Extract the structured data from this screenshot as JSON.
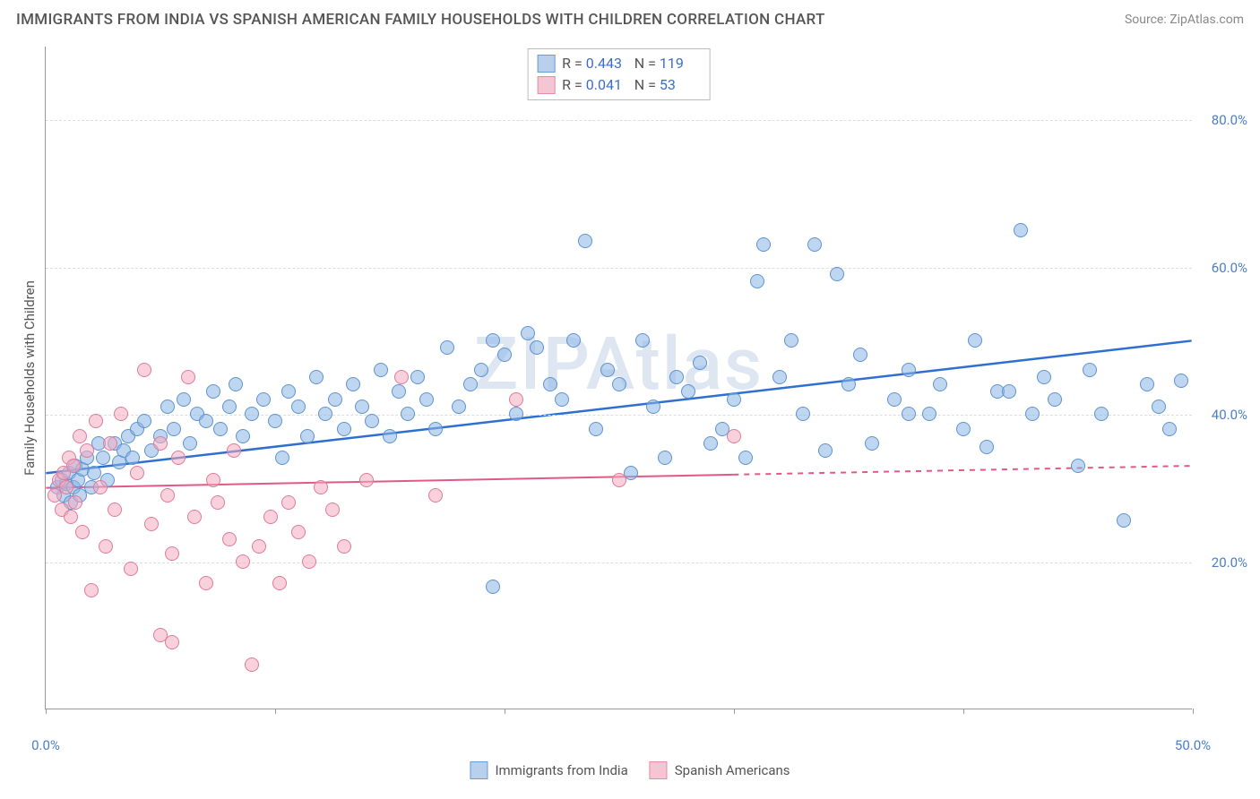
{
  "title": "IMMIGRANTS FROM INDIA VS SPANISH AMERICAN FAMILY HOUSEHOLDS WITH CHILDREN CORRELATION CHART",
  "source": "Source: ZipAtlas.com",
  "watermark": "ZIPAtlas",
  "y_axis_label": "Family Households with Children",
  "xlim": [
    0,
    50
  ],
  "ylim": [
    0,
    90
  ],
  "x_ticks": [
    0,
    10,
    20,
    30,
    40,
    50
  ],
  "x_tick_labels": [
    "0.0%",
    "",
    "",
    "",
    "",
    "50.0%"
  ],
  "y_gridlines": [
    20,
    40,
    60,
    80
  ],
  "y_tick_labels": [
    "20.0%",
    "40.0%",
    "60.0%",
    "80.0%"
  ],
  "series": [
    {
      "name": "Immigrants from India",
      "fill": "rgba(138,180,230,0.55)",
      "stroke": "#5e93d0",
      "swatch_fill": "#b8d0ec",
      "swatch_border": "#6a9bd6",
      "r_value": "0.443",
      "n_value": "119",
      "trend": {
        "x1": 0,
        "y1": 32,
        "x2": 50,
        "y2": 50,
        "color": "#2f6fd0",
        "width": 2.5,
        "dash": "none",
        "solid_until": 50
      },
      "points": [
        [
          0.5,
          30
        ],
        [
          0.7,
          31
        ],
        [
          0.8,
          29
        ],
        [
          0.9,
          30.5
        ],
        [
          1.0,
          32
        ],
        [
          1.1,
          28
        ],
        [
          1.2,
          30
        ],
        [
          1.3,
          33
        ],
        [
          1.4,
          31
        ],
        [
          1.5,
          29
        ],
        [
          1.6,
          32.5
        ],
        [
          1.8,
          34
        ],
        [
          2.0,
          30
        ],
        [
          2.1,
          32
        ],
        [
          2.3,
          36
        ],
        [
          2.5,
          34
        ],
        [
          2.7,
          31
        ],
        [
          3.0,
          36
        ],
        [
          3.2,
          33.5
        ],
        [
          3.4,
          35
        ],
        [
          3.6,
          37
        ],
        [
          3.8,
          34
        ],
        [
          4.0,
          38
        ],
        [
          4.3,
          39
        ],
        [
          4.6,
          35
        ],
        [
          5.0,
          37
        ],
        [
          5.3,
          41
        ],
        [
          5.6,
          38
        ],
        [
          6.0,
          42
        ],
        [
          6.3,
          36
        ],
        [
          6.6,
          40
        ],
        [
          7.0,
          39
        ],
        [
          7.3,
          43
        ],
        [
          7.6,
          38
        ],
        [
          8.0,
          41
        ],
        [
          8.3,
          44
        ],
        [
          8.6,
          37
        ],
        [
          9.0,
          40
        ],
        [
          9.5,
          42
        ],
        [
          10.0,
          39
        ],
        [
          10.3,
          34
        ],
        [
          10.6,
          43
        ],
        [
          11.0,
          41
        ],
        [
          11.4,
          37
        ],
        [
          11.8,
          45
        ],
        [
          12.2,
          40
        ],
        [
          12.6,
          42
        ],
        [
          13.0,
          38
        ],
        [
          13.4,
          44
        ],
        [
          13.8,
          41
        ],
        [
          14.2,
          39
        ],
        [
          14.6,
          46
        ],
        [
          15.0,
          37
        ],
        [
          15.4,
          43
        ],
        [
          15.8,
          40
        ],
        [
          16.2,
          45
        ],
        [
          16.6,
          42
        ],
        [
          17.0,
          38
        ],
        [
          17.5,
          49
        ],
        [
          18.0,
          41
        ],
        [
          18.5,
          44
        ],
        [
          19.0,
          46
        ],
        [
          19.5,
          16.5
        ],
        [
          19.5,
          50
        ],
        [
          20.0,
          48
        ],
        [
          20.5,
          40
        ],
        [
          21.0,
          51
        ],
        [
          21.4,
          49
        ],
        [
          22.0,
          44
        ],
        [
          22.5,
          42
        ],
        [
          23.0,
          50
        ],
        [
          23.5,
          63.5
        ],
        [
          24.0,
          38
        ],
        [
          24.5,
          46
        ],
        [
          25.0,
          44
        ],
        [
          25.5,
          32
        ],
        [
          26.0,
          50
        ],
        [
          26.5,
          41
        ],
        [
          27.0,
          34
        ],
        [
          27.5,
          45
        ],
        [
          28.0,
          43
        ],
        [
          28.5,
          47
        ],
        [
          29.0,
          36
        ],
        [
          29.5,
          38
        ],
        [
          30.0,
          42
        ],
        [
          30.5,
          34
        ],
        [
          31.0,
          58
        ],
        [
          31.3,
          63
        ],
        [
          32.0,
          45
        ],
        [
          32.5,
          50
        ],
        [
          33.0,
          40
        ],
        [
          33.5,
          63
        ],
        [
          34.0,
          35
        ],
        [
          34.5,
          59
        ],
        [
          35.0,
          44
        ],
        [
          35.5,
          48
        ],
        [
          36.0,
          36
        ],
        [
          37.0,
          42
        ],
        [
          37.6,
          46
        ],
        [
          37.6,
          40
        ],
        [
          38.5,
          40
        ],
        [
          39.0,
          44
        ],
        [
          40.0,
          38
        ],
        [
          40.5,
          50
        ],
        [
          41.0,
          35.5
        ],
        [
          41.5,
          43
        ],
        [
          42.0,
          43
        ],
        [
          42.5,
          65
        ],
        [
          43.0,
          40
        ],
        [
          43.5,
          45
        ],
        [
          44.0,
          42
        ],
        [
          45.0,
          33
        ],
        [
          45.5,
          46
        ],
        [
          46.0,
          40
        ],
        [
          47.0,
          25.5
        ],
        [
          48.0,
          44
        ],
        [
          48.5,
          41
        ],
        [
          49.0,
          38
        ],
        [
          49.5,
          44.5
        ]
      ]
    },
    {
      "name": "Spanish Americans",
      "fill": "rgba(243,172,193,0.55)",
      "stroke": "#e07a9a",
      "swatch_fill": "#f4c6d4",
      "swatch_border": "#e58aa8",
      "r_value": "0.041",
      "n_value": "53",
      "trend": {
        "x1": 0,
        "y1": 30,
        "x2": 50,
        "y2": 33,
        "color": "#e05a85",
        "width": 2,
        "dash": "6,6",
        "solid_until": 30
      },
      "points": [
        [
          0.4,
          29
        ],
        [
          0.6,
          31
        ],
        [
          0.7,
          27
        ],
        [
          0.8,
          32
        ],
        [
          0.9,
          30
        ],
        [
          1.0,
          34
        ],
        [
          1.1,
          26
        ],
        [
          1.2,
          33
        ],
        [
          1.3,
          28
        ],
        [
          1.5,
          37
        ],
        [
          1.6,
          24
        ],
        [
          1.8,
          35
        ],
        [
          2.0,
          16
        ],
        [
          2.2,
          39
        ],
        [
          2.4,
          30
        ],
        [
          2.6,
          22
        ],
        [
          2.8,
          36
        ],
        [
          3.0,
          27
        ],
        [
          3.3,
          40
        ],
        [
          3.7,
          19
        ],
        [
          4.0,
          32
        ],
        [
          4.3,
          46
        ],
        [
          4.6,
          25
        ],
        [
          5.0,
          36
        ],
        [
          5.0,
          10
        ],
        [
          5.3,
          29
        ],
        [
          5.5,
          21
        ],
        [
          5.5,
          9
        ],
        [
          5.8,
          34
        ],
        [
          6.2,
          45
        ],
        [
          6.5,
          26
        ],
        [
          7.0,
          17
        ],
        [
          7.3,
          31
        ],
        [
          7.5,
          28
        ],
        [
          8.0,
          23
        ],
        [
          8.2,
          35
        ],
        [
          8.6,
          20
        ],
        [
          9.0,
          6
        ],
        [
          9.3,
          22
        ],
        [
          9.8,
          26
        ],
        [
          10.2,
          17
        ],
        [
          10.6,
          28
        ],
        [
          11.0,
          24
        ],
        [
          11.5,
          20
        ],
        [
          12.0,
          30
        ],
        [
          12.5,
          27
        ],
        [
          13.0,
          22
        ],
        [
          14.0,
          31
        ],
        [
          15.5,
          45
        ],
        [
          17.0,
          29
        ],
        [
          20.5,
          42
        ],
        [
          25.0,
          31
        ],
        [
          30.0,
          37
        ]
      ]
    }
  ],
  "legend_labels": [
    "Immigrants from India",
    "Spanish Americans"
  ]
}
